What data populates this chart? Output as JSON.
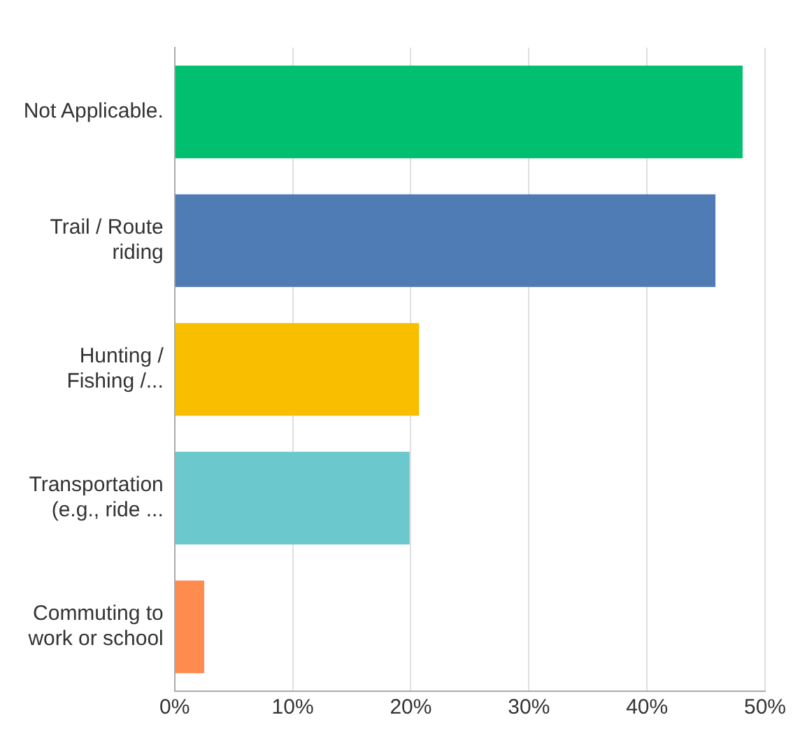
{
  "chart_data": {
    "type": "bar",
    "orientation": "horizontal",
    "categories": [
      "Not Applicable.",
      "Trail / Route riding",
      "Hunting / Fishing /...",
      "Transportation (e.g., ride ...",
      "Commuting to work or school"
    ],
    "values": [
      48.1,
      45.8,
      20.7,
      19.9,
      2.5
    ],
    "colors": [
      "#00bf6f",
      "#507cb6",
      "#f9be00",
      "#6bc8cd",
      "#ff8b4f"
    ],
    "xlim": [
      0,
      50
    ],
    "xticks": [
      {
        "value": 0,
        "label": "0%"
      },
      {
        "value": 10,
        "label": "10%"
      },
      {
        "value": 20,
        "label": "20%"
      },
      {
        "value": 30,
        "label": "30%"
      },
      {
        "value": 40,
        "label": "40%"
      },
      {
        "value": 50,
        "label": "50%"
      }
    ],
    "grid": "x",
    "legend": false
  }
}
